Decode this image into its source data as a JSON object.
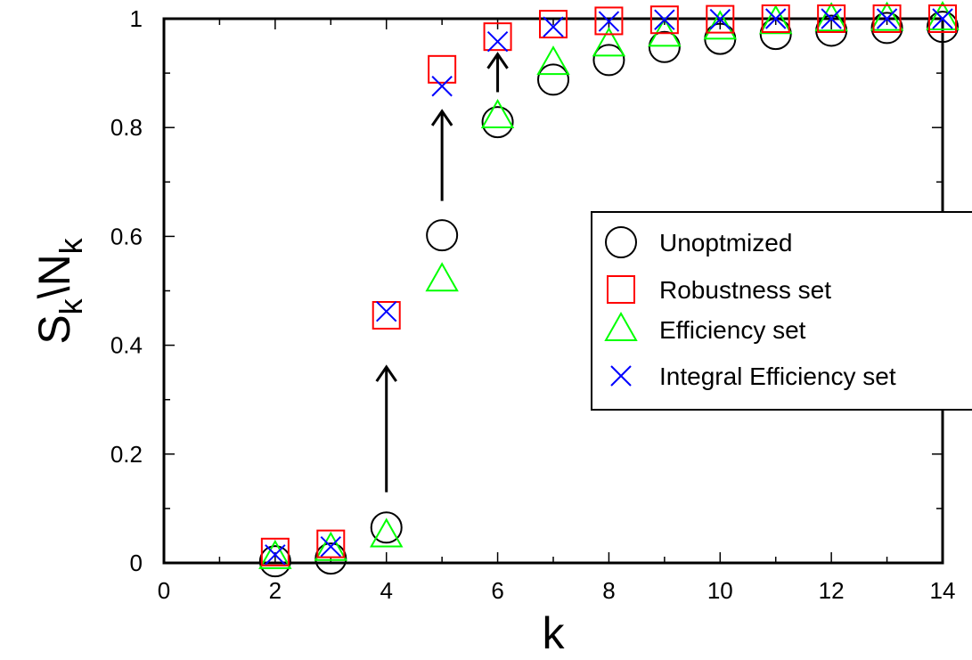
{
  "chart_data": {
    "type": "scatter",
    "title": "",
    "xlabel": "k",
    "ylabel": {
      "S": "S",
      "sub1": "k",
      "sep": "\\N",
      "sub2": "k"
    },
    "xlim": [
      0,
      14
    ],
    "ylim": [
      0,
      1
    ],
    "x_ticks": [
      "0",
      "2",
      "4",
      "6",
      "8",
      "10",
      "12",
      "14"
    ],
    "y_ticks": [
      "0",
      "0.2",
      "0.4",
      "0.6",
      "0.8",
      "1"
    ],
    "grid": false,
    "legend_position": "center-right",
    "series": [
      {
        "name": "Unoptmized",
        "marker": "circle",
        "color": "#000000",
        "x": [
          2,
          3,
          4,
          5,
          6,
          7,
          8,
          9,
          10,
          11,
          12,
          13,
          14
        ],
        "y": [
          0.003,
          0.008,
          0.065,
          0.602,
          0.81,
          0.888,
          0.924,
          0.948,
          0.963,
          0.972,
          0.978,
          0.983,
          0.985
        ]
      },
      {
        "name": "Robustness set",
        "marker": "square",
        "color": "#ff0000",
        "x": [
          2,
          3,
          4,
          5,
          6,
          7,
          8,
          9,
          10,
          11,
          12,
          13,
          14
        ],
        "y": [
          0.02,
          0.035,
          0.455,
          0.907,
          0.967,
          0.99,
          0.996,
          0.998,
          0.999,
          1.0,
          1.0,
          1.0,
          1.0
        ]
      },
      {
        "name": "Efficiency set",
        "marker": "triangle",
        "color": "#00ff00",
        "x": [
          2,
          3,
          4,
          5,
          6,
          7,
          8,
          9,
          10,
          11,
          12,
          13,
          14
        ],
        "y": [
          0.01,
          0.025,
          0.05,
          0.52,
          0.82,
          0.918,
          0.952,
          0.97,
          0.983,
          0.993,
          0.998,
          0.999,
          1.0
        ]
      },
      {
        "name": "Integral Efficiency set",
        "marker": "x",
        "color": "#0000ff",
        "x": [
          2,
          3,
          4,
          5,
          6,
          7,
          8,
          9,
          10,
          11,
          12,
          13,
          14
        ],
        "y": [
          0.015,
          0.03,
          0.462,
          0.876,
          0.958,
          0.985,
          0.995,
          0.998,
          0.999,
          1.0,
          1.0,
          1.0,
          1.0
        ]
      }
    ],
    "annotations": [
      {
        "type": "arrow",
        "x": 4,
        "y_from": 0.13,
        "y_to": 0.36
      },
      {
        "type": "arrow",
        "x": 5,
        "y_from": 0.665,
        "y_to": 0.83
      },
      {
        "type": "arrow",
        "x": 6,
        "y_from": 0.865,
        "y_to": 0.935
      }
    ]
  }
}
